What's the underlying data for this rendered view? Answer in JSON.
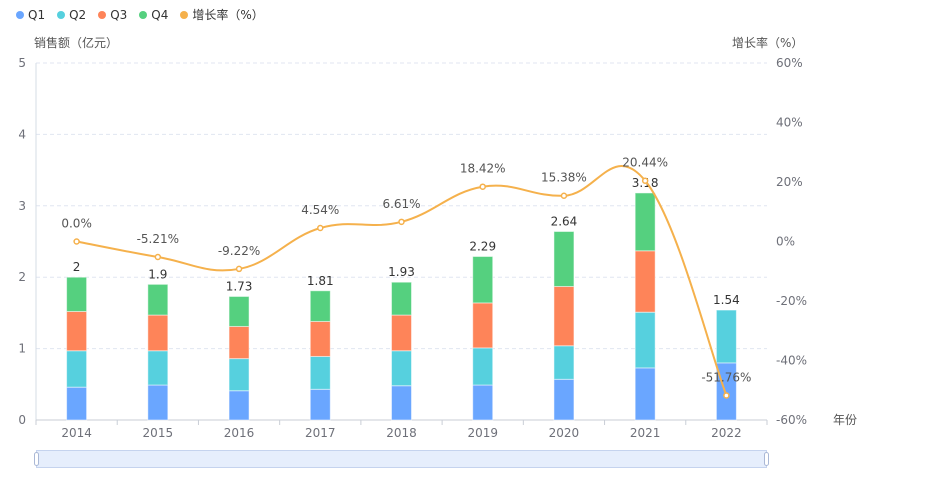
{
  "chart_data": {
    "type": "bar",
    "stacked": true,
    "categories": [
      "2014",
      "2015",
      "2016",
      "2017",
      "2018",
      "2019",
      "2020",
      "2021",
      "2022"
    ],
    "series": [
      {
        "name": "Q1",
        "type": "bar",
        "color": "#6aa6ff",
        "values": [
          0.46,
          0.49,
          0.41,
          0.43,
          0.48,
          0.49,
          0.57,
          0.73,
          0.8
        ]
      },
      {
        "name": "Q2",
        "type": "bar",
        "color": "#56d0de",
        "values": [
          0.51,
          0.48,
          0.45,
          0.46,
          0.49,
          0.52,
          0.47,
          0.78,
          0.74
        ]
      },
      {
        "name": "Q3",
        "type": "bar",
        "color": "#fe8459",
        "values": [
          0.55,
          0.5,
          0.45,
          0.49,
          0.5,
          0.63,
          0.83,
          0.86,
          0
        ]
      },
      {
        "name": "Q4",
        "type": "bar",
        "color": "#55d07f",
        "values": [
          0.48,
          0.43,
          0.42,
          0.43,
          0.46,
          0.65,
          0.77,
          0.81,
          0
        ]
      },
      {
        "name": "增长率（%）",
        "type": "line",
        "color": "#f5b14c",
        "axis": "right",
        "values": [
          0.0,
          -5.21,
          -9.22,
          4.54,
          6.61,
          18.42,
          15.38,
          20.44,
          -51.76
        ],
        "labels": [
          "0.0%",
          "-5.21%",
          "-9.22%",
          "4.54%",
          "6.61%",
          "18.42%",
          "15.38%",
          "20.44%",
          "-51.76%"
        ]
      }
    ],
    "totals": [
      2,
      1.9,
      1.73,
      1.81,
      1.93,
      2.29,
      2.64,
      3.18,
      1.54
    ],
    "total_labels": [
      "2",
      "1.9",
      "1.73",
      "1.81",
      "1.93",
      "2.29",
      "2.64",
      "3.18",
      "1.54"
    ],
    "ylabel": "销售额（亿元）",
    "ylabel_right": "增长率（%）",
    "xlabel": "年份",
    "ylim": [
      0,
      5
    ],
    "yticks": [
      "0",
      "1",
      "2",
      "3",
      "4",
      "5"
    ],
    "ylim_right": [
      -60,
      60
    ],
    "yticks_right": [
      "-60%",
      "-40%",
      "-20%",
      "0%",
      "20%",
      "40%",
      "60%"
    ],
    "grid": true,
    "legend_position": "top-left"
  },
  "legend": [
    {
      "label": "Q1",
      "color": "#6aa6ff"
    },
    {
      "label": "Q2",
      "color": "#56d0de"
    },
    {
      "label": "Q3",
      "color": "#fe8459"
    },
    {
      "label": "Q4",
      "color": "#55d07f"
    },
    {
      "label": "增长率（%）",
      "color": "#f5b14c"
    }
  ],
  "data_zoom": {
    "start_percent": 0,
    "end_percent": 100
  }
}
